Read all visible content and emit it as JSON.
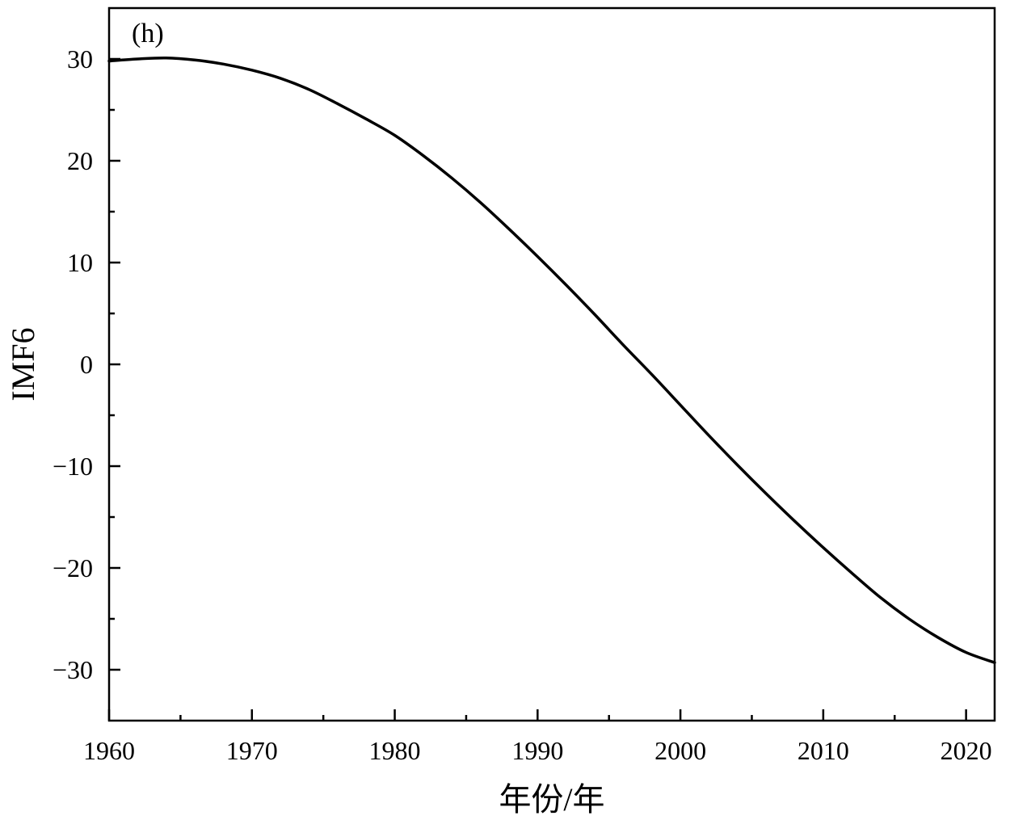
{
  "chart_data": {
    "type": "line",
    "panel_label": "(h)",
    "title": "",
    "xlabel": "年份/年",
    "ylabel": "IMF6",
    "xlim": [
      1960,
      2022
    ],
    "ylim": [
      -35,
      35
    ],
    "x_major_ticks": [
      1960,
      1970,
      1980,
      1990,
      2000,
      2010,
      2020
    ],
    "x_tick_labels": [
      "1960",
      "1970",
      "1980",
      "1990",
      "2000",
      "2010",
      "2020"
    ],
    "x_minor_ticks": [
      1965,
      1975,
      1985,
      1995,
      2005,
      2015
    ],
    "y_major_ticks": [
      -30,
      -20,
      -10,
      0,
      10,
      20,
      30
    ],
    "y_tick_labels": [
      "−30",
      "−20",
      "−10",
      "0",
      "10",
      "20",
      "30"
    ],
    "y_minor_ticks": [
      -25,
      -15,
      -5,
      5,
      15,
      25
    ],
    "grid": false,
    "line_color": "#000000",
    "series": [
      {
        "x": [
          1960,
          1962,
          1964,
          1966,
          1968,
          1970,
          1972,
          1974,
          1976,
          1978,
          1980,
          1982,
          1984,
          1986,
          1988,
          1990,
          1992,
          1994,
          1996,
          1998,
          2000,
          2002,
          2004,
          2006,
          2008,
          2010,
          2012,
          2014,
          2016,
          2018,
          2020,
          2022
        ],
        "values": [
          29.8,
          30.0,
          30.1,
          29.9,
          29.5,
          28.9,
          28.1,
          27.0,
          25.6,
          24.1,
          22.5,
          20.5,
          18.3,
          15.9,
          13.3,
          10.6,
          7.8,
          4.9,
          1.9,
          -1.0,
          -4.0,
          -7.0,
          -9.9,
          -12.7,
          -15.4,
          -18.0,
          -20.5,
          -22.9,
          -25.0,
          -26.8,
          -28.3,
          -29.3
        ]
      }
    ]
  }
}
